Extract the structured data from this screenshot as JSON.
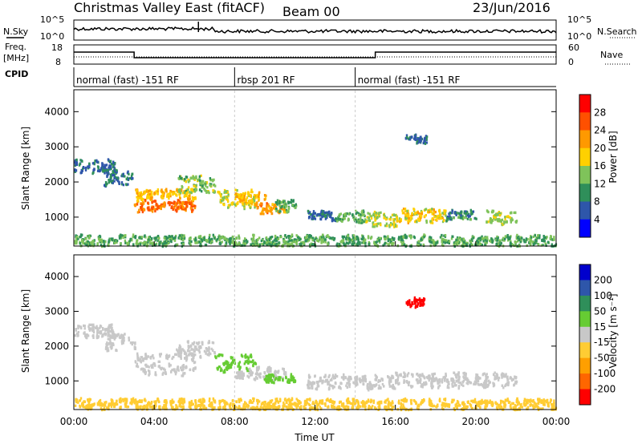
{
  "header": {
    "station_title": "Christmas Valley East (fitACF)",
    "beam": "Beam 00",
    "date": "23/Jun/2016"
  },
  "noise_panel": {
    "left_label": "N.Sky",
    "right_label": "N.Search",
    "left_ticks": [
      "10^5",
      "10^0"
    ],
    "right_ticks": [
      "10^5",
      "10^0"
    ]
  },
  "freq_panel": {
    "left_label_line1": "Freq.",
    "left_label_line2": "[MHz]",
    "right_label": "Nave",
    "left_ticks": [
      "18",
      "8"
    ],
    "right_ticks": [
      "60",
      "0"
    ],
    "freq_steps": [
      {
        "start_h": 0,
        "end_h": 3.0,
        "mhz": 14.5
      },
      {
        "start_h": 3.0,
        "end_h": 15.0,
        "mhz": 11.0
      },
      {
        "start_h": 15.0,
        "end_h": 24.0,
        "mhz": 14.5
      }
    ]
  },
  "cpid": {
    "label": "CPID",
    "segments": [
      {
        "start_h": 0,
        "end_h": 8.0,
        "text": "normal (fast) -151 RF"
      },
      {
        "start_h": 8.0,
        "end_h": 14.0,
        "text": "rbsp 201 RF"
      },
      {
        "start_h": 14.0,
        "end_h": 24.0,
        "text": "normal (fast) -151 RF"
      }
    ]
  },
  "colors": {
    "power_scale": [
      "#0000ff",
      "#2e56aa",
      "#2f8f5a",
      "#7fc35a",
      "#ffd000",
      "#ff9900",
      "#ff5000",
      "#ff0000"
    ],
    "velocity_scale": [
      "#ff0000",
      "#ff6600",
      "#ff9f00",
      "#ffcc33",
      "#c8c8c8",
      "#66cc33",
      "#2f8f5a",
      "#2e56aa",
      "#0000cc"
    ]
  },
  "chart_data": [
    {
      "type": "heatmap",
      "name": "Power",
      "xlabel": "",
      "ylabel": "Slant Range [km]",
      "xlim_hours": [
        0,
        24
      ],
      "ylim_km": [
        200,
        4600
      ],
      "y_ticks": [
        "1000",
        "2000",
        "3000",
        "4000"
      ],
      "colorbar_label": "Power [dB]",
      "colorbar_ticks": [
        "4",
        "8",
        "12",
        "16",
        "20",
        "24",
        "28"
      ],
      "regions": [
        {
          "t0": 0.0,
          "t1": 2.0,
          "r0": 2300,
          "r1": 2650,
          "v": 9
        },
        {
          "t0": 1.5,
          "t1": 3.0,
          "r0": 1900,
          "r1": 2400,
          "v": 10
        },
        {
          "t0": 3.0,
          "t1": 6.0,
          "r0": 1200,
          "r1": 1500,
          "v": 27
        },
        {
          "t0": 3.0,
          "t1": 6.0,
          "r0": 1500,
          "r1": 1800,
          "v": 21
        },
        {
          "t0": 5.0,
          "t1": 7.0,
          "r0": 1700,
          "r1": 2200,
          "v": 16
        },
        {
          "t0": 7.0,
          "t1": 9.0,
          "r0": 1300,
          "r1": 1800,
          "v": 19
        },
        {
          "t0": 8.0,
          "t1": 9.5,
          "r0": 1400,
          "r1": 1700,
          "v": 22
        },
        {
          "t0": 9.0,
          "t1": 10.5,
          "r0": 1100,
          "r1": 1400,
          "v": 24
        },
        {
          "t0": 10.0,
          "t1": 11.0,
          "r0": 1200,
          "r1": 1500,
          "v": 14
        },
        {
          "t0": 11.5,
          "t1": 13.0,
          "r0": 950,
          "r1": 1200,
          "v": 9
        },
        {
          "t0": 13.0,
          "t1": 14.5,
          "r0": 900,
          "r1": 1200,
          "v": 14
        },
        {
          "t0": 14.5,
          "t1": 16.0,
          "r0": 750,
          "r1": 1150,
          "v": 18
        },
        {
          "t0": 16.0,
          "t1": 18.5,
          "r0": 900,
          "r1": 1250,
          "v": 20
        },
        {
          "t0": 18.5,
          "t1": 20.0,
          "r0": 950,
          "r1": 1200,
          "v": 12
        },
        {
          "t0": 20.5,
          "t1": 22.0,
          "r0": 850,
          "r1": 1200,
          "v": 17
        },
        {
          "t0": 16.5,
          "t1": 17.5,
          "r0": 3150,
          "r1": 3400,
          "v": 9
        },
        {
          "t0": 0.0,
          "t1": 24.0,
          "r0": 200,
          "r1": 500,
          "v": 14
        }
      ]
    },
    {
      "type": "heatmap",
      "name": "Velocity",
      "xlabel": "Time UT",
      "ylabel": "Slant Range [km]",
      "xlim_hours": [
        0,
        24
      ],
      "ylim_km": [
        200,
        4600
      ],
      "x_ticks": [
        "00:00",
        "04:00",
        "08:00",
        "12:00",
        "16:00",
        "20:00",
        "00:00"
      ],
      "y_ticks": [
        "1000",
        "2000",
        "3000",
        "4000"
      ],
      "colorbar_label": "Velocity [m s⁻¹]",
      "colorbar_ticks": [
        "200",
        "100",
        "50",
        "15",
        "-15",
        "-50",
        "-100",
        "-200"
      ],
      "regions": [
        {
          "t0": 0.0,
          "t1": 2.0,
          "r0": 2300,
          "r1": 2650,
          "v": 0
        },
        {
          "t0": 1.5,
          "t1": 3.0,
          "r0": 1900,
          "r1": 2400,
          "v": 0
        },
        {
          "t0": 3.0,
          "t1": 6.0,
          "r0": 1200,
          "r1": 1800,
          "v": 0
        },
        {
          "t0": 5.0,
          "t1": 7.0,
          "r0": 1700,
          "r1": 2200,
          "v": 0
        },
        {
          "t0": 7.0,
          "t1": 9.0,
          "r0": 1300,
          "r1": 1800,
          "v": 30
        },
        {
          "t0": 8.0,
          "t1": 10.5,
          "r0": 1100,
          "r1": 1400,
          "v": 10
        },
        {
          "t0": 9.5,
          "t1": 11.0,
          "r0": 1000,
          "r1": 1200,
          "v": 40
        },
        {
          "t0": 11.5,
          "t1": 16.0,
          "r0": 800,
          "r1": 1200,
          "v": 0
        },
        {
          "t0": 16.0,
          "t1": 22.0,
          "r0": 850,
          "r1": 1250,
          "v": 0
        },
        {
          "t0": 16.5,
          "t1": 17.5,
          "r0": 3150,
          "r1": 3400,
          "v": -250
        },
        {
          "t0": 0.0,
          "t1": 24.0,
          "r0": 200,
          "r1": 500,
          "v": -30
        }
      ]
    }
  ]
}
